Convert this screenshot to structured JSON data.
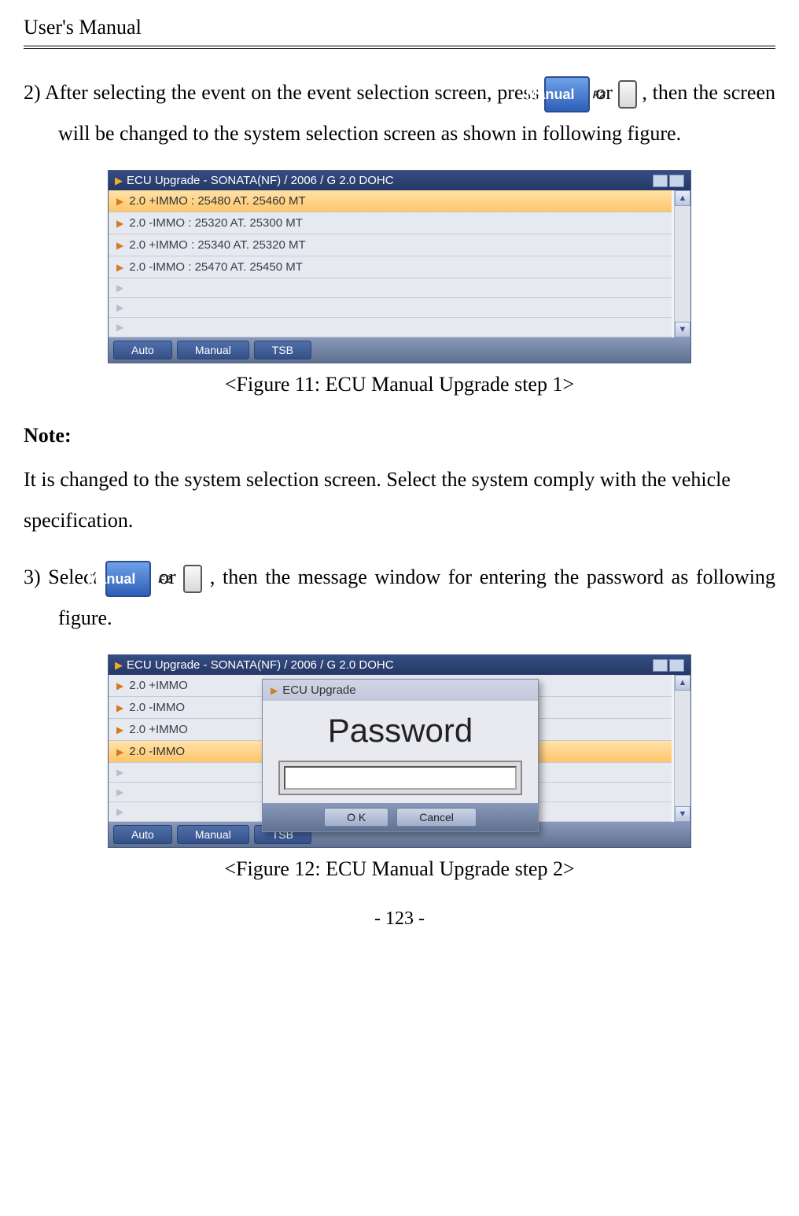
{
  "header": {
    "title": "User's Manual"
  },
  "step2": {
    "prefix": "2) After  selecting  the  event  on  the  event  selection  screen,  press ",
    "btn_manual": "Manual",
    "key_f2": "F2",
    "mid": " or ",
    "suffix": ", then the screen will be changed to the system selection screen as shown in following figure."
  },
  "figure1": {
    "titlebar": "ECU Upgrade - SONATA(NF) / 2006 / G 2.0 DOHC",
    "rows": [
      {
        "label": "2.0 +IMMO : 25480 AT. 25460 MT",
        "selected": true,
        "empty": false
      },
      {
        "label": "2.0 -IMMO : 25320 AT. 25300 MT",
        "selected": false,
        "empty": false
      },
      {
        "label": "2.0 +IMMO : 25340 AT. 25320 MT",
        "selected": false,
        "empty": false
      },
      {
        "label": "2.0 -IMMO : 25470 AT. 25450 MT",
        "selected": false,
        "empty": false
      },
      {
        "label": "",
        "selected": false,
        "empty": true
      },
      {
        "label": "",
        "selected": false,
        "empty": true
      },
      {
        "label": "",
        "selected": false,
        "empty": true
      }
    ],
    "tabs": {
      "auto": "Auto",
      "manual": "Manual",
      "tsb": "TSB"
    },
    "caption": "<Figure 11: ECU Manual Upgrade step 1>"
  },
  "note": {
    "heading": "Note:",
    "body": "It is changed to the system selection screen. Select the system comply with the vehicle specification."
  },
  "step3": {
    "prefix": "3) Select ",
    "btn_manual": "Manual",
    "key_f2": "F2",
    "mid": " or ",
    "suffix": ",  then  the  message  window  for  entering the password as following figure."
  },
  "figure2": {
    "titlebar": "ECU Upgrade - SONATA(NF) / 2006 / G 2.0 DOHC",
    "rows": [
      {
        "label": "2.0 +IMMO",
        "selected": false,
        "empty": false
      },
      {
        "label": "2.0 -IMMO",
        "selected": false,
        "empty": false
      },
      {
        "label": "2.0 +IMMO",
        "selected": false,
        "empty": false
      },
      {
        "label": "2.0 -IMMO",
        "selected": true,
        "empty": false
      },
      {
        "label": "",
        "selected": false,
        "empty": true
      },
      {
        "label": "",
        "selected": false,
        "empty": true
      },
      {
        "label": "",
        "selected": false,
        "empty": true
      }
    ],
    "tabs": {
      "auto": "Auto",
      "manual": "Manual",
      "tsb": "TSB"
    },
    "dialog": {
      "title": "ECU Upgrade",
      "label": "Password",
      "ok": "O K",
      "cancel": "Cancel"
    },
    "caption": "<Figure 12: ECU Manual Upgrade step 2>"
  },
  "page_no": "- 123 -",
  "colors": {
    "button_grad_top": "#6fa0e8",
    "button_grad_bot": "#2e5fb8",
    "titlebar_grad_top": "#354d82",
    "titlebar_grad_bot": "#253866",
    "selected_row_top": "#ffe2a8",
    "selected_row_bot": "#fec66b",
    "triangle_orange": "#d87820"
  }
}
